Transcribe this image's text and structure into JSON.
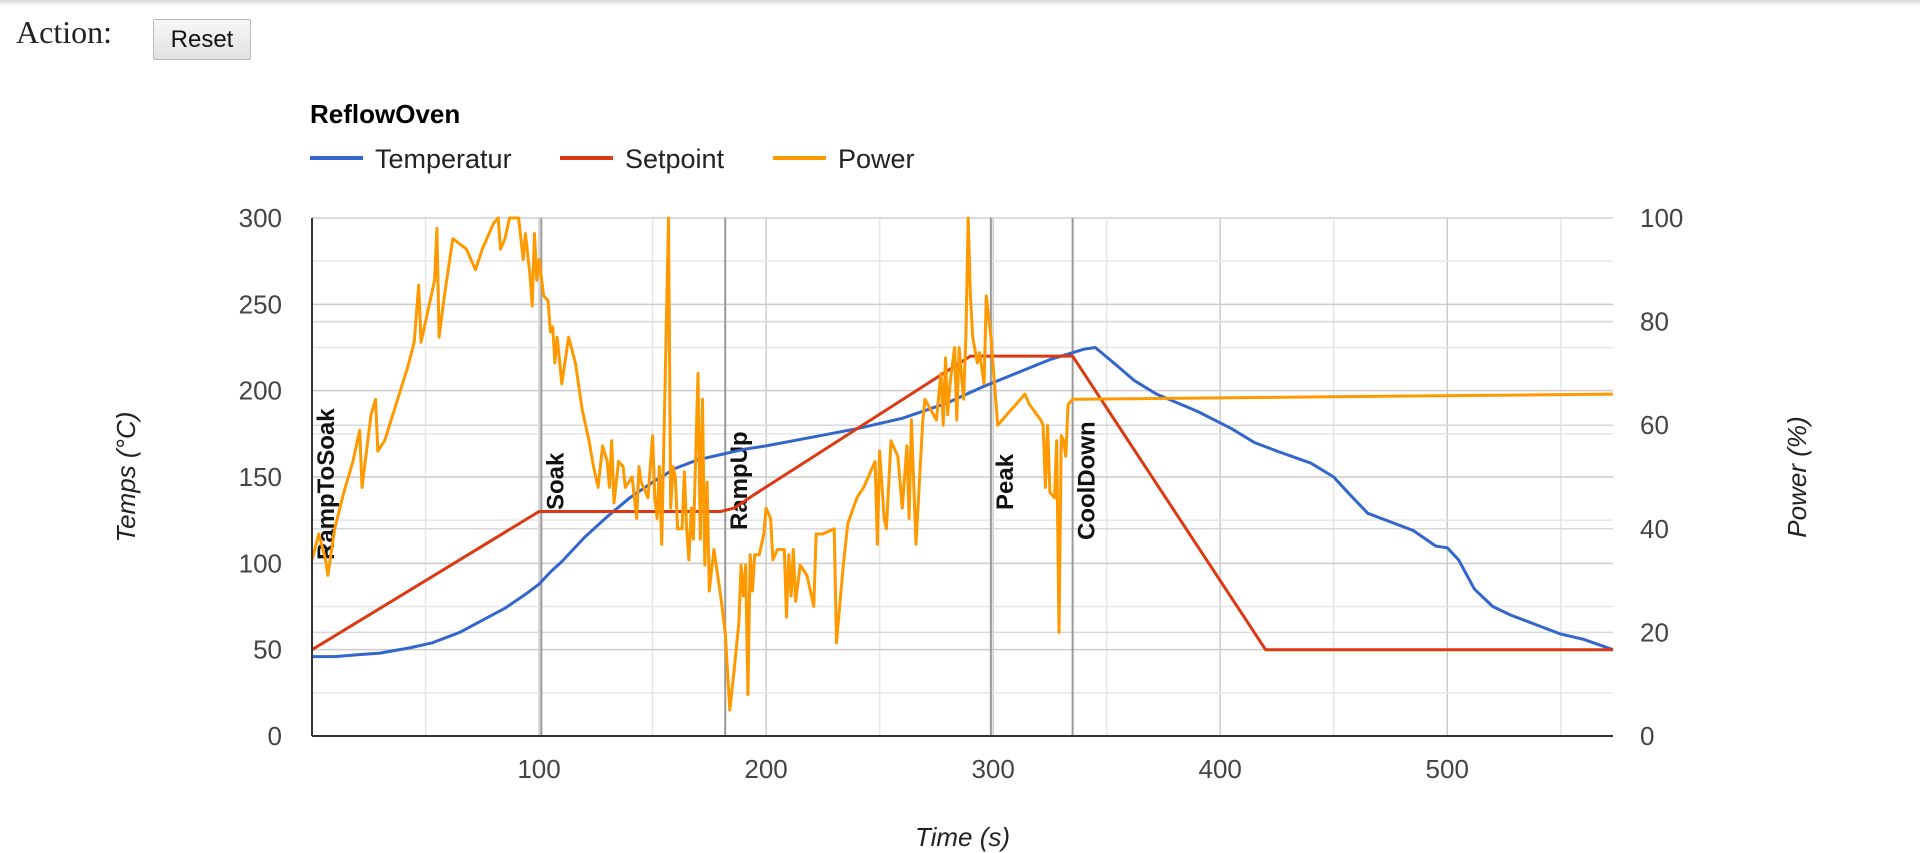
{
  "action": {
    "label": "Action:",
    "reset_label": "Reset"
  },
  "chart_data": {
    "type": "line",
    "title": "ReflowOven",
    "xlabel": "Time (s)",
    "ylabel": "Temps (°C)",
    "y2label": "Power (%)",
    "xlim": [
      0,
      573
    ],
    "xticks": [
      100,
      200,
      300,
      400,
      500
    ],
    "ylim": [
      0,
      300
    ],
    "yticks": [
      0,
      50,
      100,
      150,
      200,
      250,
      300
    ],
    "y2lim": [
      0,
      100
    ],
    "y2ticks": [
      0,
      20,
      40,
      60,
      80,
      100
    ],
    "grid": true,
    "legend_position": "top",
    "series": [
      {
        "name": "Temperatur",
        "axis": "left",
        "color": "#3366cc",
        "points": [
          [
            0,
            46
          ],
          [
            10,
            46
          ],
          [
            20,
            47
          ],
          [
            30,
            48
          ],
          [
            43,
            51
          ],
          [
            53,
            54
          ],
          [
            65,
            60
          ],
          [
            75,
            67
          ],
          [
            85,
            74
          ],
          [
            95,
            83
          ],
          [
            100,
            88
          ],
          [
            105,
            95
          ],
          [
            110,
            101
          ],
          [
            120,
            115
          ],
          [
            130,
            127
          ],
          [
            140,
            138
          ],
          [
            150,
            147
          ],
          [
            160,
            155
          ],
          [
            170,
            160
          ],
          [
            180,
            163
          ],
          [
            190,
            166
          ],
          [
            200,
            168
          ],
          [
            220,
            173
          ],
          [
            240,
            178
          ],
          [
            260,
            184
          ],
          [
            280,
            193
          ],
          [
            295,
            202
          ],
          [
            310,
            210
          ],
          [
            325,
            218
          ],
          [
            335,
            222
          ],
          [
            340,
            224
          ],
          [
            345,
            225
          ],
          [
            355,
            214
          ],
          [
            362,
            206
          ],
          [
            372,
            198
          ],
          [
            390,
            188
          ],
          [
            405,
            178
          ],
          [
            415,
            170
          ],
          [
            425,
            165
          ],
          [
            440,
            158
          ],
          [
            450,
            150
          ],
          [
            457,
            140
          ],
          [
            465,
            129
          ],
          [
            475,
            124
          ],
          [
            485,
            119
          ],
          [
            495,
            110
          ],
          [
            500,
            109
          ],
          [
            505,
            102
          ],
          [
            512,
            85
          ],
          [
            520,
            75
          ],
          [
            528,
            70
          ],
          [
            540,
            64
          ],
          [
            550,
            59
          ],
          [
            560,
            56
          ],
          [
            573,
            50
          ]
        ]
      },
      {
        "name": "Setpoint",
        "axis": "left",
        "color": "#dc3912",
        "points": [
          [
            0,
            50
          ],
          [
            100,
            130
          ],
          [
            180,
            130
          ],
          [
            186,
            132
          ],
          [
            195,
            140
          ],
          [
            290,
            220
          ],
          [
            335,
            220
          ],
          [
            420,
            50
          ],
          [
            573,
            50
          ]
        ]
      },
      {
        "name": "Power",
        "axis": "right",
        "color": "#ff9900",
        "points": [
          [
            0,
            34
          ],
          [
            3,
            39
          ],
          [
            6,
            34
          ],
          [
            7,
            31
          ],
          [
            10,
            40
          ],
          [
            14,
            47
          ],
          [
            18,
            53
          ],
          [
            21,
            59
          ],
          [
            22,
            48
          ],
          [
            26,
            62
          ],
          [
            28,
            65
          ],
          [
            29,
            55
          ],
          [
            32,
            57
          ],
          [
            37,
            64
          ],
          [
            42,
            71
          ],
          [
            45,
            76
          ],
          [
            47,
            87
          ],
          [
            48,
            76
          ],
          [
            52,
            84
          ],
          [
            54,
            88
          ],
          [
            55,
            98
          ],
          [
            56,
            77
          ],
          [
            58,
            84
          ],
          [
            60,
            90
          ],
          [
            62,
            96
          ],
          [
            68,
            94
          ],
          [
            72,
            90
          ],
          [
            75,
            94
          ],
          [
            80,
            99
          ],
          [
            82,
            100
          ],
          [
            83,
            94
          ],
          [
            85,
            96
          ],
          [
            87,
            100
          ],
          [
            90,
            100
          ],
          [
            91,
            100
          ],
          [
            93,
            92
          ],
          [
            94,
            97
          ],
          [
            96,
            89
          ],
          [
            97,
            83
          ],
          [
            98,
            97
          ],
          [
            99,
            88
          ],
          [
            100,
            92
          ],
          [
            102,
            85
          ],
          [
            104,
            84
          ],
          [
            105,
            78
          ],
          [
            106,
            79
          ],
          [
            107,
            72
          ],
          [
            108,
            77
          ],
          [
            110,
            68
          ],
          [
            113,
            77
          ],
          [
            116,
            72
          ],
          [
            119,
            63
          ],
          [
            122,
            57
          ],
          [
            124,
            52
          ],
          [
            126,
            48
          ],
          [
            128,
            56
          ],
          [
            130,
            53
          ],
          [
            131,
            48
          ],
          [
            132,
            57
          ],
          [
            133,
            45
          ],
          [
            135,
            53
          ],
          [
            137,
            52
          ],
          [
            138,
            48
          ],
          [
            141,
            50
          ],
          [
            143,
            42
          ],
          [
            144,
            52
          ],
          [
            145,
            49
          ],
          [
            148,
            46
          ],
          [
            150,
            58
          ],
          [
            151,
            46
          ],
          [
            152,
            42
          ],
          [
            153,
            52
          ],
          [
            154,
            37
          ],
          [
            156,
            78
          ],
          [
            157,
            100
          ],
          [
            158,
            44
          ],
          [
            159,
            52
          ],
          [
            160,
            50
          ],
          [
            161,
            40
          ],
          [
            163,
            40
          ],
          [
            164,
            51
          ],
          [
            165,
            40
          ],
          [
            166,
            34
          ],
          [
            167,
            44
          ],
          [
            168,
            38
          ],
          [
            170,
            70
          ],
          [
            171,
            38
          ],
          [
            172,
            65
          ],
          [
            173,
            33
          ],
          [
            174,
            49
          ],
          [
            175,
            28
          ],
          [
            176,
            32
          ],
          [
            177,
            36
          ],
          [
            178,
            33
          ],
          [
            180,
            27
          ],
          [
            182,
            20
          ],
          [
            184,
            5
          ],
          [
            186,
            13
          ],
          [
            188,
            22
          ],
          [
            189,
            33
          ],
          [
            190,
            27
          ],
          [
            191,
            33
          ],
          [
            192,
            8
          ],
          [
            193,
            35
          ],
          [
            194,
            28
          ],
          [
            195,
            35
          ],
          [
            197,
            35
          ],
          [
            199,
            39
          ],
          [
            200,
            44
          ],
          [
            202,
            42
          ],
          [
            203,
            34
          ],
          [
            205,
            36
          ],
          [
            208,
            36
          ],
          [
            209,
            23
          ],
          [
            210,
            35
          ],
          [
            211,
            27
          ],
          [
            212,
            36
          ],
          [
            213,
            26
          ],
          [
            215,
            33
          ],
          [
            218,
            31
          ],
          [
            220,
            27
          ],
          [
            221,
            25
          ],
          [
            222,
            39
          ],
          [
            225,
            39
          ],
          [
            230,
            40
          ],
          [
            231,
            18
          ],
          [
            234,
            33
          ],
          [
            236,
            41
          ],
          [
            240,
            46
          ],
          [
            243,
            48
          ],
          [
            248,
            53
          ],
          [
            249,
            37
          ],
          [
            250,
            55
          ],
          [
            252,
            42
          ],
          [
            253,
            40
          ],
          [
            255,
            57
          ],
          [
            258,
            54
          ],
          [
            260,
            44
          ],
          [
            262,
            56
          ],
          [
            263,
            42
          ],
          [
            264,
            61
          ],
          [
            266,
            37
          ],
          [
            269,
            61
          ],
          [
            270,
            65
          ],
          [
            275,
            61
          ],
          [
            277,
            70
          ],
          [
            278,
            60
          ],
          [
            279,
            73
          ],
          [
            280,
            62
          ],
          [
            281,
            68
          ],
          [
            283,
            75
          ],
          [
            284,
            61
          ],
          [
            285,
            75
          ],
          [
            287,
            65
          ],
          [
            288,
            77
          ],
          [
            289,
            100
          ],
          [
            290,
            85
          ],
          [
            291,
            77
          ],
          [
            293,
            72
          ],
          [
            294,
            74
          ],
          [
            296,
            68
          ],
          [
            297,
            85
          ],
          [
            299,
            77
          ],
          [
            302,
            60
          ],
          [
            306,
            62
          ],
          [
            310,
            64
          ],
          [
            312,
            65
          ],
          [
            314,
            66
          ],
          [
            316,
            64
          ],
          [
            321,
            61
          ],
          [
            322,
            60
          ],
          [
            323,
            48
          ],
          [
            324,
            60
          ],
          [
            325,
            47
          ],
          [
            327,
            46
          ],
          [
            328,
            57
          ],
          [
            329,
            20
          ],
          [
            330,
            58
          ],
          [
            331,
            57
          ],
          [
            332,
            54
          ],
          [
            333,
            64
          ],
          [
            335,
            65
          ],
          [
            336,
            65
          ],
          [
            573,
            66
          ]
        ]
      }
    ],
    "annotations": [
      {
        "x": 0,
        "label": "RampToSoak"
      },
      {
        "x": 101,
        "label": "Soak"
      },
      {
        "x": 182,
        "label": "RampUp"
      },
      {
        "x": 299,
        "label": "Peak"
      },
      {
        "x": 335,
        "label": "CoolDown"
      }
    ]
  }
}
